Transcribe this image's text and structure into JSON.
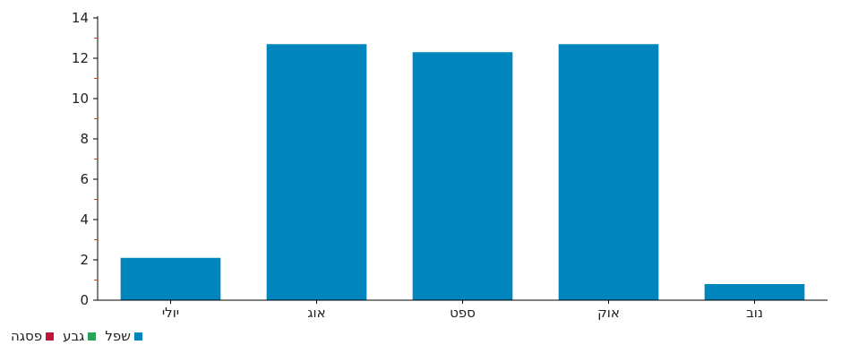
{
  "chart_data": {
    "type": "bar",
    "categories": [
      "יולי",
      "אוג",
      "ספט",
      "אוק",
      "נוב"
    ],
    "series": [
      {
        "name": "שפל",
        "values": [
          2.1,
          12.7,
          12.3,
          12.7,
          0.8
        ],
        "color": "#0086bd"
      }
    ],
    "ylim": [
      0,
      14
    ],
    "yticks": [
      0,
      2,
      4,
      6,
      8,
      10,
      12,
      14
    ],
    "grid": false,
    "legend_position": "bottom-left"
  },
  "legend": [
    {
      "label": "שפל",
      "color": "#0086bd"
    },
    {
      "label": "גבע",
      "color": "#27a35a"
    },
    {
      "label": "פסגה",
      "color": "#c0163a"
    }
  ]
}
